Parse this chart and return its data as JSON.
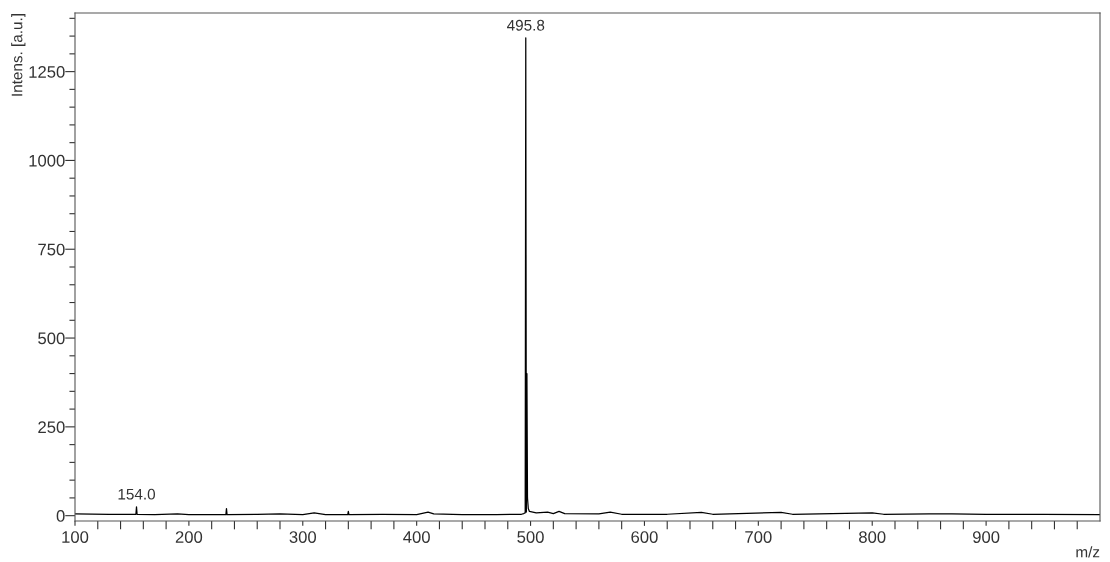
{
  "chart_data": {
    "type": "line",
    "xlabel": "m/z",
    "ylabel": "Intens. [a.u.]",
    "xlim": [
      100,
      1000
    ],
    "ylim": [
      -15,
      1415
    ],
    "xticks": [
      100,
      {
        "value": 120,
        "label": null
      },
      {
        "value": 140,
        "label": null
      },
      {
        "value": 160,
        "label": null
      },
      {
        "value": 180,
        "label": null
      },
      200,
      {
        "value": 220,
        "label": null
      },
      {
        "value": 240,
        "label": null
      },
      {
        "value": 260,
        "label": null
      },
      {
        "value": 280,
        "label": null
      },
      300,
      {
        "value": 320,
        "label": null
      },
      {
        "value": 340,
        "label": null
      },
      {
        "value": 360,
        "label": null
      },
      {
        "value": 380,
        "label": null
      },
      400,
      {
        "value": 420,
        "label": null
      },
      {
        "value": 440,
        "label": null
      },
      {
        "value": 460,
        "label": null
      },
      {
        "value": 480,
        "label": null
      },
      500,
      {
        "value": 520,
        "label": null
      },
      {
        "value": 540,
        "label": null
      },
      {
        "value": 560,
        "label": null
      },
      {
        "value": 580,
        "label": null
      },
      600,
      {
        "value": 620,
        "label": null
      },
      {
        "value": 640,
        "label": null
      },
      {
        "value": 660,
        "label": null
      },
      {
        "value": 680,
        "label": null
      },
      700,
      {
        "value": 720,
        "label": null
      },
      {
        "value": 740,
        "label": null
      },
      {
        "value": 760,
        "label": null
      },
      {
        "value": 780,
        "label": null
      },
      800,
      {
        "value": 820,
        "label": null
      },
      {
        "value": 840,
        "label": null
      },
      {
        "value": 860,
        "label": null
      },
      {
        "value": 880,
        "label": null
      },
      900,
      {
        "value": 920,
        "label": null
      },
      {
        "value": 940,
        "label": null
      },
      {
        "value": 960,
        "label": null
      },
      {
        "value": 980,
        "label": null
      }
    ],
    "yticks": [
      0,
      {
        "value": 50,
        "label": null
      },
      {
        "value": 100,
        "label": null
      },
      {
        "value": 150,
        "label": null
      },
      {
        "value": 200,
        "label": null
      },
      250,
      {
        "value": 300,
        "label": null
      },
      {
        "value": 350,
        "label": null
      },
      {
        "value": 400,
        "label": null
      },
      {
        "value": 450,
        "label": null
      },
      500,
      {
        "value": 550,
        "label": null
      },
      {
        "value": 600,
        "label": null
      },
      {
        "value": 650,
        "label": null
      },
      {
        "value": 700,
        "label": null
      },
      750,
      {
        "value": 800,
        "label": null
      },
      {
        "value": 850,
        "label": null
      },
      {
        "value": 900,
        "label": null
      },
      {
        "value": 950,
        "label": null
      },
      1000,
      {
        "value": 1050,
        "label": null
      },
      {
        "value": 1100,
        "label": null
      },
      {
        "value": 1150,
        "label": null
      },
      {
        "value": 1200,
        "label": null
      },
      1250,
      {
        "value": 1300,
        "label": null
      },
      {
        "value": 1350,
        "label": null
      },
      {
        "value": 1400,
        "label": null
      }
    ],
    "grid": false,
    "marker": "none",
    "line_style": "solid",
    "series": [
      {
        "color": "#000000",
        "x": [
          100,
          130,
          150,
          153.5,
          154,
          154.5,
          170,
          190,
          200,
          232.5,
          233,
          233.5,
          260,
          280,
          300,
          310,
          320,
          339.5,
          340,
          340.5,
          370,
          400,
          410,
          415,
          440,
          470,
          492,
          494,
          495.3,
          495.8,
          496.3,
          496.8,
          497.3,
          498,
          499,
          505,
          515,
          520,
          525,
          530,
          560,
          570,
          580,
          620,
          650,
          660,
          720,
          730,
          800,
          810,
          850,
          870,
          900,
          950,
          1000
        ],
        "values": [
          5,
          4,
          4,
          4,
          25,
          4,
          3,
          5,
          3,
          3,
          20,
          3,
          4,
          5,
          3,
          8,
          3,
          3,
          12,
          3,
          4,
          3,
          10,
          5,
          3,
          3,
          4,
          6,
          8,
          1345,
          10,
          400,
          50,
          20,
          12,
          8,
          10,
          6,
          12,
          6,
          5,
          10,
          4,
          4,
          9,
          4,
          9,
          4,
          8,
          4,
          5,
          5,
          4,
          4,
          3
        ]
      }
    ],
    "annotations": [
      {
        "text": "495.8",
        "x": 495.8,
        "y": 1345
      },
      {
        "text": "154.0",
        "x": 154.0,
        "y": 25
      }
    ]
  }
}
